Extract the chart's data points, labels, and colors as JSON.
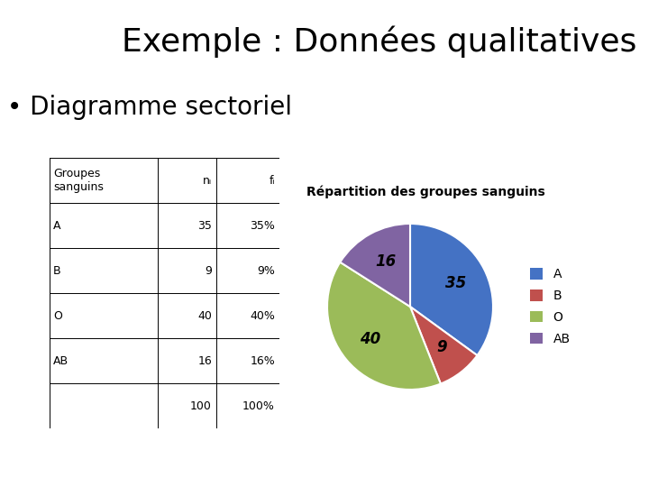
{
  "title": "Exemple : Données qualitatives",
  "subtitle": "• Diagramme sectoriel",
  "pie_title": "Répartition des groupes sanguins",
  "labels": [
    "A",
    "B",
    "O",
    "AB"
  ],
  "values": [
    35,
    9,
    40,
    16
  ],
  "colors": [
    "#4472C4",
    "#C0504D",
    "#9BBB59",
    "#8064A2"
  ],
  "table_col1": [
    "Groupes\nsanguins",
    "A",
    "B",
    "O",
    "AB",
    ""
  ],
  "table_col2": [
    "nᵢ",
    "35",
    "9",
    "40",
    "16",
    "100"
  ],
  "table_col3": [
    "fᵢ",
    "35%",
    "9%",
    "40%",
    "16%",
    "100%"
  ],
  "bg_color": "#FFFFFF",
  "text_color": "#000000",
  "title_fontsize": 26,
  "subtitle_fontsize": 20,
  "pie_title_fontsize": 10,
  "label_fontsize": 12,
  "table_fontsize": 9
}
